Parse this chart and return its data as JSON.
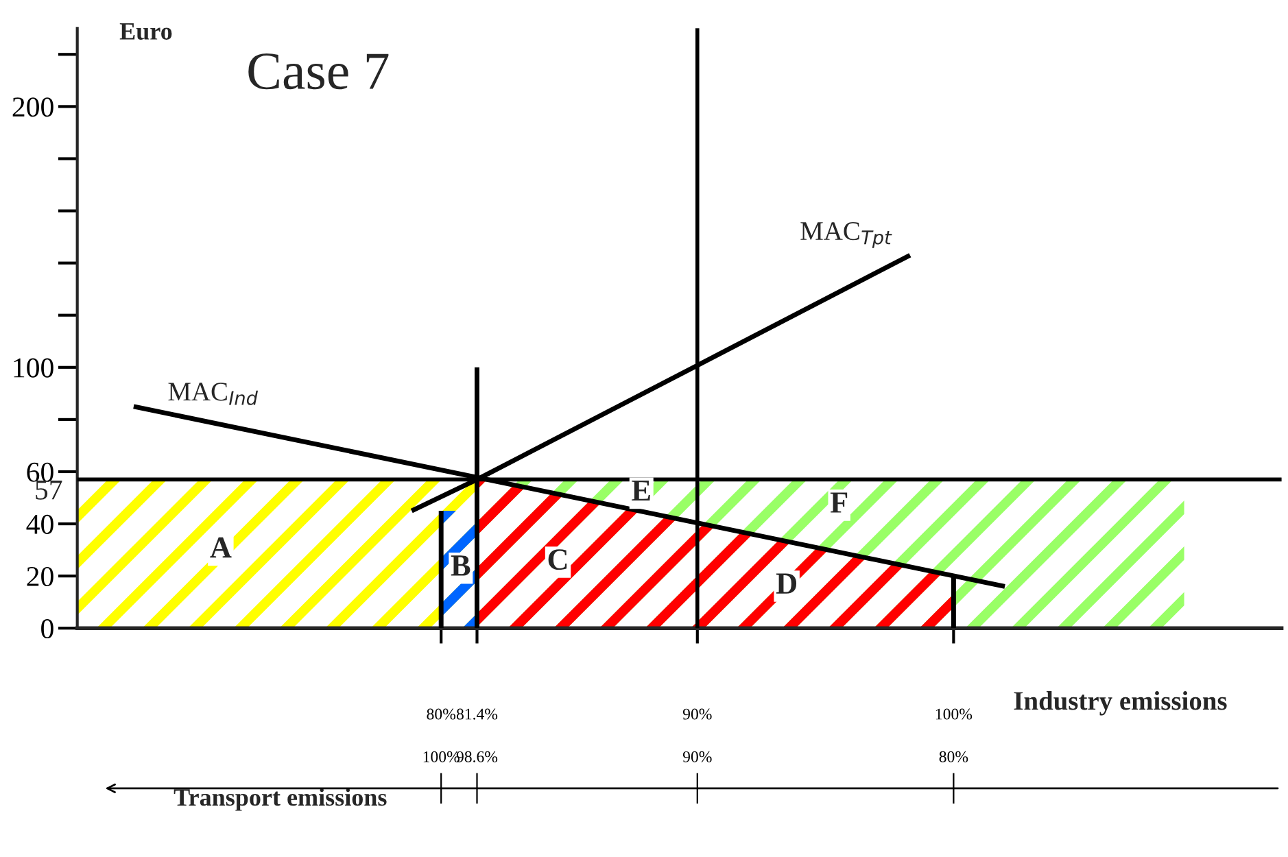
{
  "chart_data": {
    "type": "line",
    "title": "Case 7",
    "ylabel": "Euro",
    "xlabel": "Industry emissions",
    "x2label": "Transport emissions",
    "xlim": [
      65.8,
      112.8
    ],
    "x2lim": [
      114.2,
      67.2
    ],
    "xticks": [
      {
        "value": 80,
        "label": "80%"
      },
      {
        "value": 81.4,
        "label": "81.4%"
      },
      {
        "value": 90,
        "label": "90%"
      },
      {
        "value": 100,
        "label": "100%"
      }
    ],
    "x2ticks": [
      {
        "value": 100,
        "label": "100%"
      },
      {
        "value": 98.6,
        "label": "98.6%"
      },
      {
        "value": 90,
        "label": "90%"
      },
      {
        "value": 80,
        "label": "80%"
      }
    ],
    "ylim": [
      0,
      230
    ],
    "yticks": [
      0,
      20,
      40,
      60,
      {
        "value": 80,
        "label": null
      },
      100,
      {
        "value": 120,
        "label": null
      },
      {
        "value": 140,
        "label": null
      },
      {
        "value": 160,
        "label": null
      },
      {
        "value": 180,
        "label": null
      },
      200,
      {
        "value": 220,
        "label": null
      }
    ],
    "series": [
      {
        "type": "area",
        "color": "#ffff00",
        "x": [
          65.8,
          81.4
        ],
        "values": [
          57,
          57
        ]
      },
      {
        "type": "area",
        "color": "#0066ff",
        "x": [
          80,
          81.4
        ],
        "values": [
          45,
          45
        ]
      },
      {
        "type": "area",
        "color": "#99ff66",
        "x": [
          81.4,
          109
        ],
        "values": [
          57,
          57
        ]
      },
      {
        "type": "area",
        "color": "#ff0000",
        "x": [
          81.4,
          100
        ],
        "values": [
          57,
          20
        ]
      },
      {
        "color": "#000000",
        "x": [
          68,
          102
        ],
        "values": [
          85,
          16
        ]
      },
      {
        "color": "#000000",
        "x": [
          78.85,
          81.4,
          98.3
        ],
        "values": [
          45,
          57,
          143
        ]
      },
      {
        "color": "#000000",
        "x": [
          81.4,
          81.4
        ],
        "values": [
          0,
          100
        ]
      },
      {
        "color": "#000000",
        "x": [
          80,
          80
        ],
        "values": [
          0,
          45
        ]
      },
      {
        "color": "#000000",
        "x": [
          100,
          100
        ],
        "values": [
          0,
          20
        ]
      }
    ],
    "ref_lines": [
      {
        "axis": "y",
        "value": 57,
        "label": "57",
        "color": "#000000"
      },
      {
        "axis": "x",
        "value": 90,
        "color": "#000000"
      }
    ],
    "annotations": [
      "MAC$_{Ind}$",
      "MAC$_{Tpt}$",
      "A",
      "B",
      "C",
      "D",
      "E",
      "F"
    ],
    "legend": false,
    "grid": false
  }
}
